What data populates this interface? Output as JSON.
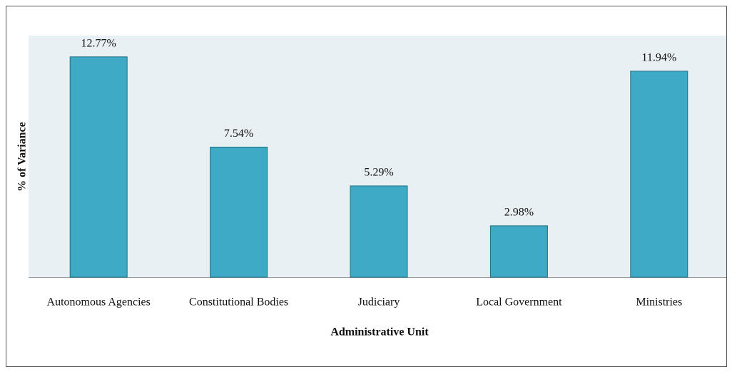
{
  "chart_data": {
    "type": "bar",
    "x_label": "Administrative Unit",
    "y_label": "% of Variance",
    "categories": [
      "Autonomous Agencies",
      "Constitutional Bodies",
      "Judiciary",
      "Local Government",
      "Ministries"
    ],
    "values": [
      12.77,
      7.54,
      5.29,
      2.98,
      11.94
    ],
    "value_labels": [
      "12.77%",
      "7.54%",
      "5.29%",
      "2.98%",
      "11.94%"
    ],
    "color": "#3eaac6",
    "ylim": [
      0,
      14
    ]
  }
}
